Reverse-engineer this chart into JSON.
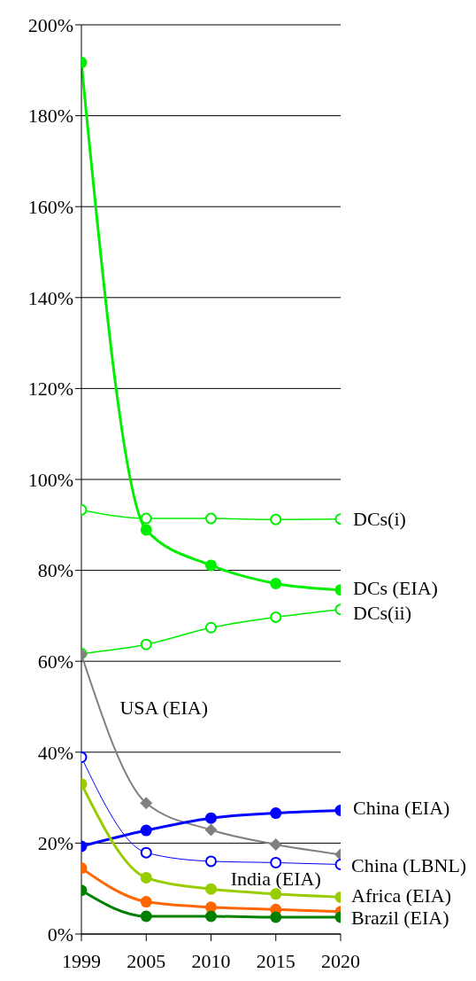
{
  "chart_data": {
    "type": "line",
    "categories": [
      "1999",
      "2005",
      "2010",
      "2015",
      "2020"
    ],
    "ylim": [
      0,
      200
    ],
    "yticks": [
      {
        "value": 0,
        "label": "0%"
      },
      {
        "value": 20,
        "label": "20%"
      },
      {
        "value": 40,
        "label": "40%"
      },
      {
        "value": 60,
        "label": "60%"
      },
      {
        "value": 80,
        "label": "80%"
      },
      {
        "value": 100,
        "label": "100%"
      },
      {
        "value": 120,
        "label": "120%"
      },
      {
        "value": 140,
        "label": "140%"
      },
      {
        "value": 160,
        "label": "160%"
      },
      {
        "value": 180,
        "label": "180%"
      },
      {
        "value": 200,
        "label": "200%"
      }
    ],
    "grid": "y",
    "legend": false,
    "marker": "circle",
    "line_style": "solid",
    "series": [
      {
        "name": "DCs(i)",
        "color": "#00ee00",
        "values": [
          93.3,
          91.4,
          91.4,
          91.2,
          91.3
        ]
      },
      {
        "name": "DCs (EIA)",
        "color": "#00ee00",
        "values": [
          191.7,
          88.9,
          81.1,
          77.1,
          75.7
        ]
      },
      {
        "name": "DCs(ii)",
        "color": "#00ee00",
        "values": [
          61.7,
          63.7,
          67.4,
          69.7,
          71.4
        ]
      },
      {
        "name": "USA (EIA)",
        "color": "#808080",
        "marker": "diamond",
        "values": [
          61.5,
          28.8,
          22.9,
          19.7,
          17.5
        ]
      },
      {
        "name": "China (EIA)",
        "color": "#0000ff",
        "values": [
          19.3,
          22.8,
          25.5,
          26.6,
          27.2
        ]
      },
      {
        "name": "China (LBNL)",
        "color": "#0000ff",
        "values": [
          38.9,
          17.9,
          16.0,
          15.7,
          15.3
        ]
      },
      {
        "name": "India (EIA)",
        "color": "#99cc00",
        "values": [
          33.0,
          12.4,
          9.9,
          8.8,
          8.1
        ]
      },
      {
        "name": "Africa (EIA)",
        "color": "#ff6600",
        "values": [
          14.5,
          7.1,
          5.9,
          5.4,
          4.9
        ]
      },
      {
        "name": "Brazil (EIA)",
        "color": "#008000",
        "values": [
          9.6,
          3.9,
          3.9,
          3.7,
          3.7
        ]
      }
    ]
  }
}
